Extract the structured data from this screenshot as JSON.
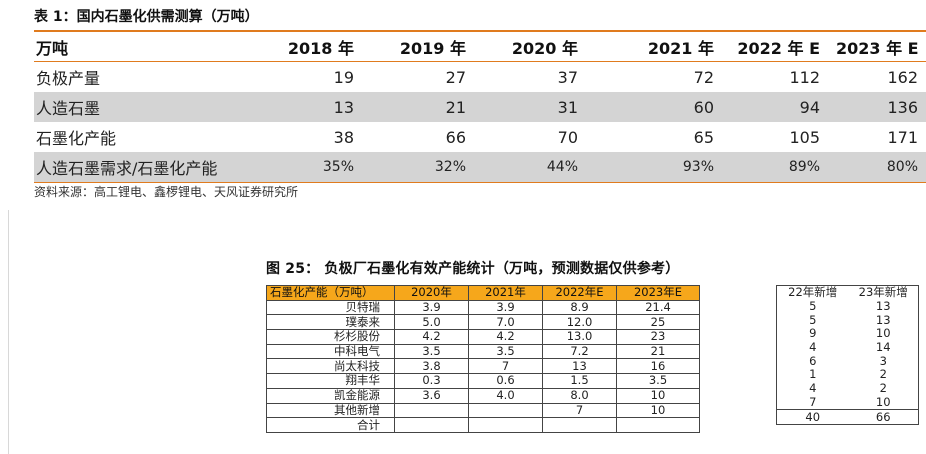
{
  "table1": {
    "caption": "表 1：国内石墨化供需测算（万吨）",
    "headers": [
      "万吨",
      "2018 年",
      "2019 年",
      "2020 年",
      "2021 年",
      "2022 年 E",
      "2023 年 E"
    ],
    "rows": [
      {
        "label": "负极产量",
        "values": [
          "19",
          "27",
          "37",
          "72",
          "112",
          "162"
        ],
        "shaded": false
      },
      {
        "label": "人造石墨",
        "values": [
          "13",
          "21",
          "31",
          "60",
          "94",
          "136"
        ],
        "shaded": true
      },
      {
        "label": "石墨化产能",
        "values": [
          "38",
          "66",
          "70",
          "65",
          "105",
          "171"
        ],
        "shaded": false
      },
      {
        "label": "人造石墨需求/石墨化产能",
        "values": [
          "35%",
          "32%",
          "44%",
          "93%",
          "89%",
          "80%"
        ],
        "shaded": true
      }
    ],
    "source": "资料来源：高工锂电、鑫椤锂电、天风证券研究所"
  },
  "figure25": {
    "caption": "图 25：  负极厂石墨化有效产能统计（万吨，预测数据仅供参考）",
    "headers": [
      "石墨化产能（万吨）",
      "2020年",
      "2021年",
      "2022年E",
      "2023年E"
    ],
    "rows": [
      {
        "name": "贝特瑞",
        "values": [
          "3.9",
          "3.9",
          "8.9",
          "21.4"
        ]
      },
      {
        "name": "璞泰来",
        "values": [
          "5.0",
          "7.0",
          "12.0",
          "25"
        ]
      },
      {
        "name": "杉杉股份",
        "values": [
          "4.2",
          "4.2",
          "13.0",
          "23"
        ]
      },
      {
        "name": "中科电气",
        "values": [
          "3.5",
          "3.5",
          "7.2",
          "21"
        ]
      },
      {
        "name": "尚太科技",
        "values": [
          "3.8",
          "7",
          "13",
          "16"
        ]
      },
      {
        "name": "翔丰华",
        "values": [
          "0.3",
          "0.6",
          "1.5",
          "3.5"
        ]
      },
      {
        "name": "凯金能源",
        "values": [
          "3.6",
          "4.0",
          "8.0",
          "10"
        ]
      },
      {
        "name": "其他新增",
        "values": [
          "",
          "",
          "7",
          "10"
        ]
      },
      {
        "name": "合计",
        "values": [
          "",
          "",
          "",
          ""
        ]
      }
    ],
    "increments": {
      "headers": [
        "22年新增",
        "23年新增"
      ],
      "rows": [
        [
          "5",
          "13"
        ],
        [
          "5",
          "13"
        ],
        [
          "9",
          "10"
        ],
        [
          "4",
          "14"
        ],
        [
          "6",
          "3"
        ],
        [
          "1",
          "2"
        ],
        [
          "4",
          "2"
        ],
        [
          "7",
          "10"
        ],
        [
          "40",
          "66"
        ]
      ]
    }
  }
}
